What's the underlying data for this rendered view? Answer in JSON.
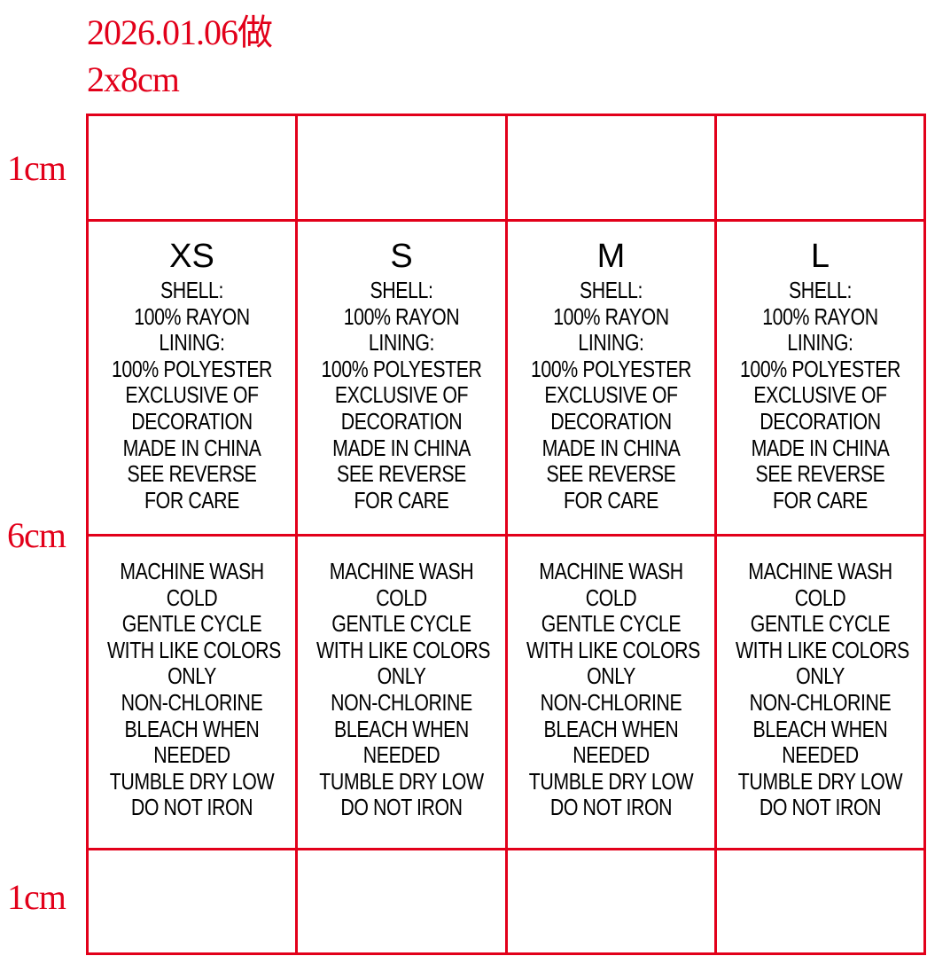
{
  "header": {
    "date_note": "2026.01.06做",
    "dimensions": "2x8cm"
  },
  "side_labels": {
    "top": "1cm",
    "middle": "6cm",
    "bottom": "1cm"
  },
  "colors": {
    "grid": "#e2001a",
    "annotation": "#e2001a",
    "text": "#000000"
  },
  "labels": [
    {
      "size": "XS",
      "composition": [
        "SHELL:",
        "100% RAYON",
        "LINING:",
        "100% POLYESTER",
        "EXCLUSIVE OF",
        "DECORATION",
        "MADE IN CHINA",
        "SEE REVERSE",
        "FOR CARE"
      ],
      "care": [
        "MACHINE WASH",
        "COLD",
        "GENTLE CYCLE",
        "WITH LIKE COLORS",
        "ONLY",
        "NON-CHLORINE",
        "BLEACH WHEN",
        "NEEDED",
        "TUMBLE DRY LOW",
        "DO NOT IRON"
      ]
    },
    {
      "size": "S",
      "composition": [
        "SHELL:",
        "100% RAYON",
        "LINING:",
        "100% POLYESTER",
        "EXCLUSIVE OF",
        "DECORATION",
        "MADE IN CHINA",
        "SEE REVERSE",
        "FOR CARE"
      ],
      "care": [
        "MACHINE WASH",
        "COLD",
        "GENTLE CYCLE",
        "WITH LIKE COLORS",
        "ONLY",
        "NON-CHLORINE",
        "BLEACH WHEN",
        "NEEDED",
        "TUMBLE DRY LOW",
        "DO NOT IRON"
      ]
    },
    {
      "size": "M",
      "composition": [
        "SHELL:",
        "100% RAYON",
        "LINING:",
        "100% POLYESTER",
        "EXCLUSIVE OF",
        "DECORATION",
        "MADE IN CHINA",
        "SEE REVERSE",
        "FOR CARE"
      ],
      "care": [
        "MACHINE WASH",
        "COLD",
        "GENTLE CYCLE",
        "WITH LIKE COLORS",
        "ONLY",
        "NON-CHLORINE",
        "BLEACH WHEN",
        "NEEDED",
        "TUMBLE DRY LOW",
        "DO NOT IRON"
      ]
    },
    {
      "size": "L",
      "composition": [
        "SHELL:",
        "100% RAYON",
        "LINING:",
        "100% POLYESTER",
        "EXCLUSIVE OF",
        "DECORATION",
        "MADE IN CHINA",
        "SEE REVERSE",
        "FOR CARE"
      ],
      "care": [
        "MACHINE WASH",
        "COLD",
        "GENTLE CYCLE",
        "WITH LIKE COLORS",
        "ONLY",
        "NON-CHLORINE",
        "BLEACH WHEN",
        "NEEDED",
        "TUMBLE DRY LOW",
        "DO NOT IRON"
      ]
    }
  ]
}
